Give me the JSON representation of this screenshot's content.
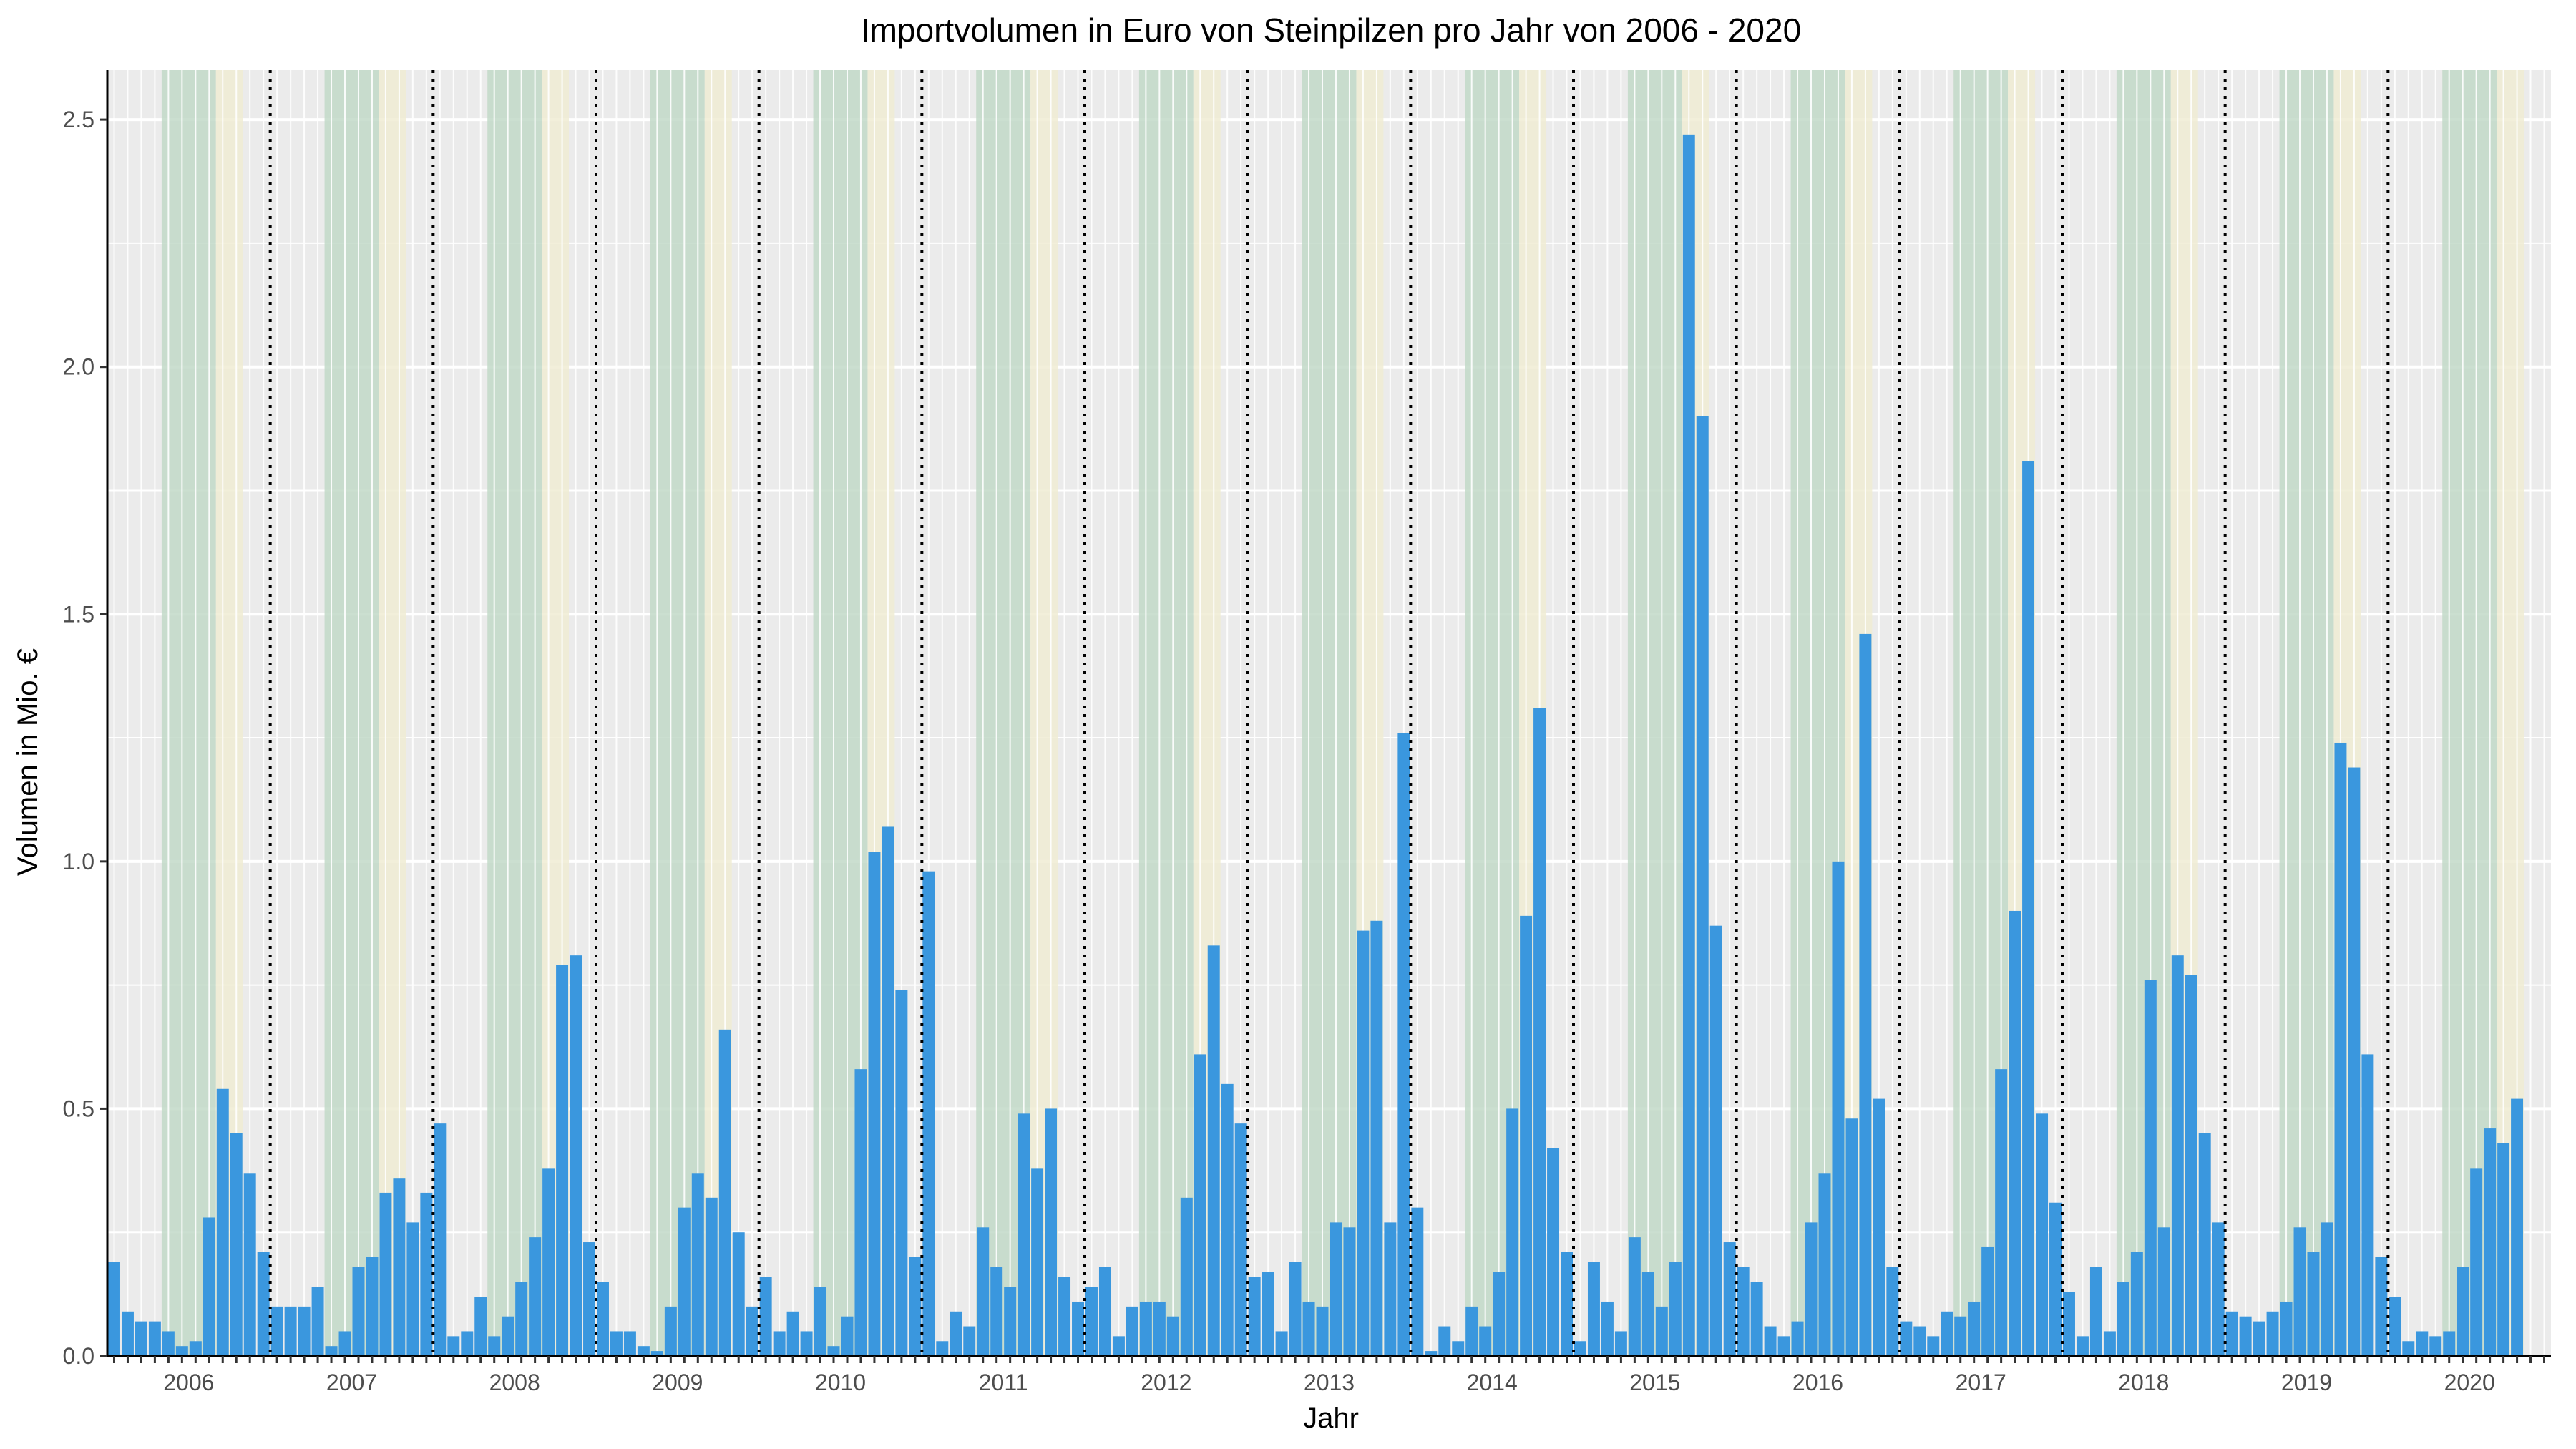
{
  "chart_data": {
    "type": "bar",
    "title": "Importvolumen in Euro von Steinpilzen pro Jahr von 2006 - 2020",
    "xlabel": "Jahr",
    "ylabel": "Volumen in Mio. €",
    "ylim": [
      0,
      2.6
    ],
    "yticks": [
      "0.0",
      "0.5",
      "1.0",
      "1.5",
      "2.0",
      "2.5"
    ],
    "years": [
      "2006",
      "2007",
      "2008",
      "2009",
      "2010",
      "2011",
      "2012",
      "2013",
      "2014",
      "2015",
      "2016",
      "2017",
      "2018",
      "2019",
      "2020"
    ],
    "grid": true,
    "season_bands": [
      {
        "from_month": 5,
        "to_month": 8,
        "color": "#c2d9c8"
      },
      {
        "from_month": 9,
        "to_month": 10,
        "color": "#f0ecd4"
      }
    ],
    "colors": {
      "bar": "#3a97de",
      "panel": "#ebebeb",
      "grid": "#ffffff",
      "year_separator": "#000000"
    },
    "series": [
      {
        "values": [
          0.19,
          0.09,
          0.07,
          0.07,
          0.05,
          0.02,
          0.03,
          0.28,
          0.54,
          0.45,
          0.37,
          0.21,
          0.1,
          0.1,
          0.1,
          0.14,
          0.02,
          0.05,
          0.18,
          0.2,
          0.33,
          0.36,
          0.27,
          0.33,
          0.47,
          0.04,
          0.05,
          0.12,
          0.04,
          0.08,
          0.15,
          0.24,
          0.38,
          0.79,
          0.81,
          0.23,
          0.15,
          0.05,
          0.05,
          0.02,
          0.01,
          0.1,
          0.3,
          0.37,
          0.32,
          0.66,
          0.25,
          0.1,
          0.16,
          0.05,
          0.09,
          0.05,
          0.14,
          0.02,
          0.08,
          0.58,
          1.02,
          1.07,
          0.74,
          0.2,
          0.98,
          0.03,
          0.09,
          0.06,
          0.26,
          0.18,
          0.14,
          0.49,
          0.38,
          0.5,
          0.16,
          0.11,
          0.14,
          0.18,
          0.04,
          0.1,
          0.11,
          0.11,
          0.08,
          0.32,
          0.61,
          0.83,
          0.55,
          0.47,
          0.16,
          0.17,
          0.05,
          0.19,
          0.11,
          0.1,
          0.27,
          0.26,
          0.86,
          0.88,
          0.27,
          1.26,
          0.3,
          0.01,
          0.06,
          0.03,
          0.1,
          0.06,
          0.17,
          0.5,
          0.89,
          1.31,
          0.42,
          0.21,
          0.03,
          0.19,
          0.11,
          0.05,
          0.24,
          0.17,
          0.1,
          0.19,
          2.47,
          1.9,
          0.87,
          0.23,
          0.18,
          0.15,
          0.06,
          0.04,
          0.07,
          0.27,
          0.37,
          1.0,
          0.48,
          1.46,
          0.52,
          0.18,
          0.07,
          0.06,
          0.04,
          0.09,
          0.08,
          0.11,
          0.22,
          0.58,
          0.9,
          1.81,
          0.49,
          0.31,
          0.13,
          0.04,
          0.18,
          0.05,
          0.15,
          0.21,
          0.76,
          0.26,
          0.81,
          0.77,
          0.45,
          0.27,
          0.09,
          0.08,
          0.07,
          0.09,
          0.11,
          0.26,
          0.21,
          0.27,
          1.24,
          1.19,
          0.61,
          0.2,
          0.12,
          0.03,
          0.05,
          0.04,
          0.05,
          0.18,
          0.38,
          0.46,
          0.43,
          0.52
        ]
      }
    ]
  }
}
